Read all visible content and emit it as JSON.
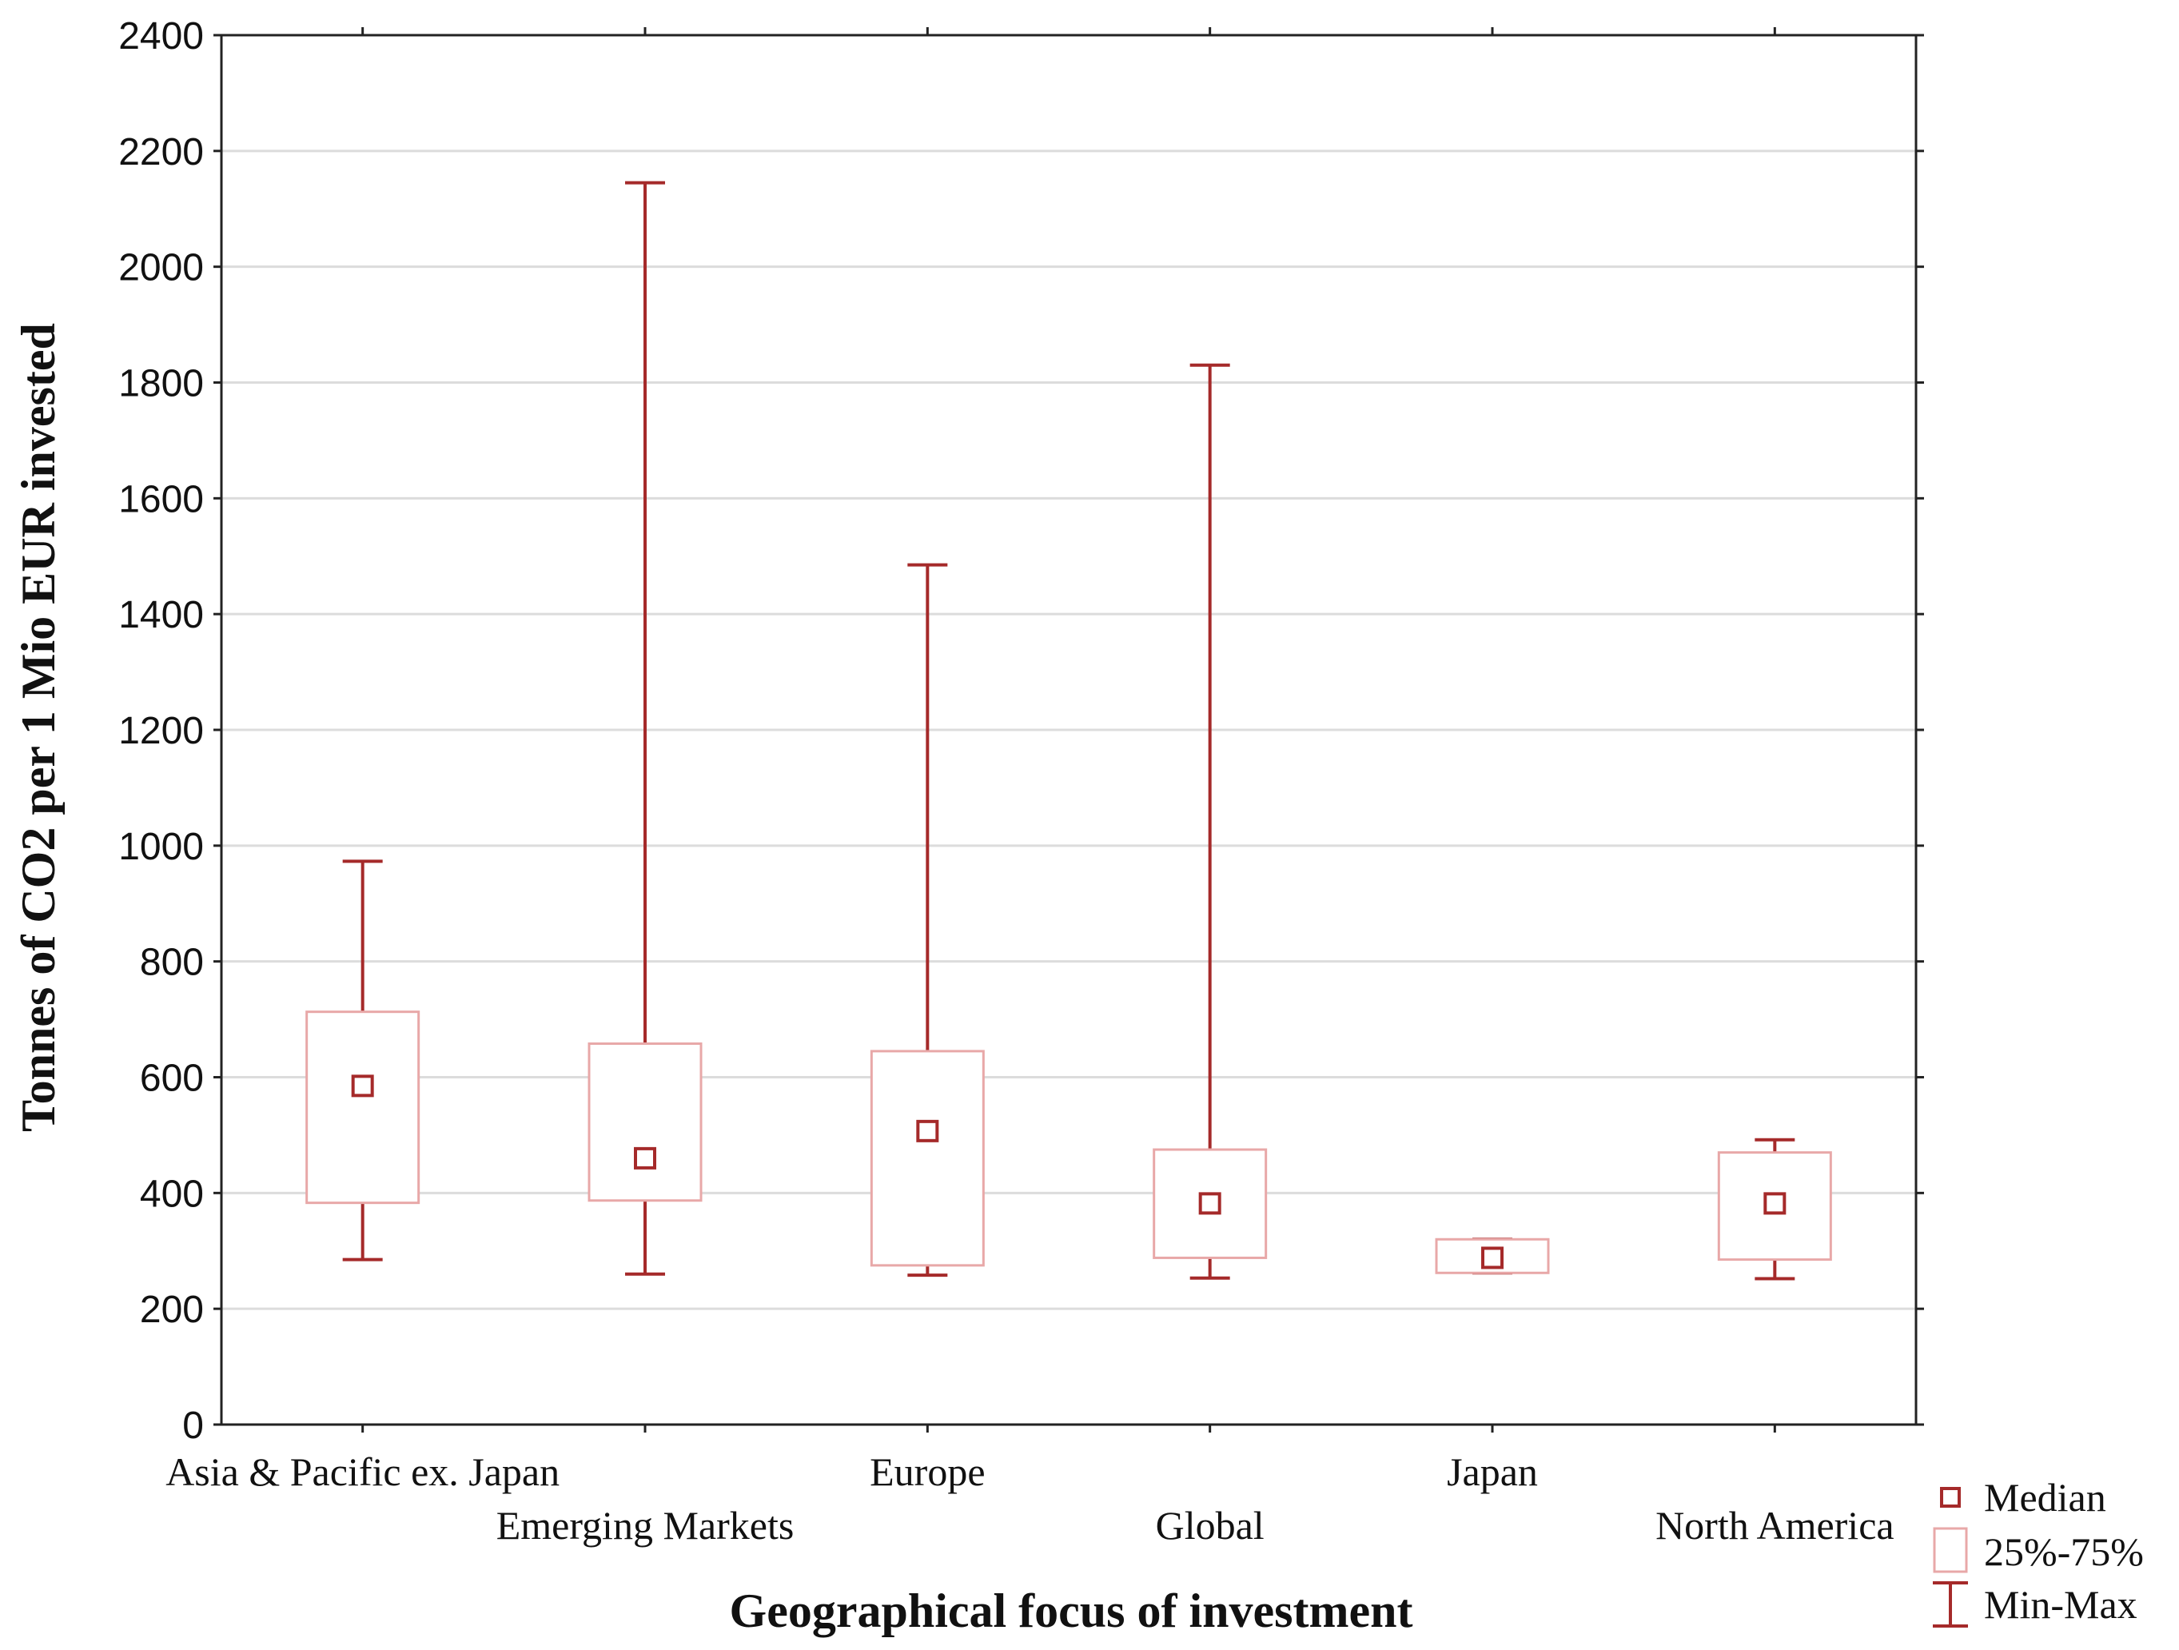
{
  "chart_data": {
    "type": "box",
    "xlabel": "Geographical focus of investment",
    "ylabel": "Tonnes of CO2 per 1 Mio EUR invested",
    "ylim": [
      0,
      2400
    ],
    "yticks": [
      0,
      200,
      400,
      600,
      800,
      1000,
      1200,
      1400,
      1600,
      1800,
      2000,
      2200,
      2400
    ],
    "grid": true,
    "legend_position": "bottom-right",
    "categories": [
      "Asia & Pacific ex. Japan",
      "Emerging Markets",
      "Europe",
      "Global",
      "Japan",
      "North America"
    ],
    "boxes": [
      {
        "min": 285,
        "q1": 383,
        "median": 585,
        "q3": 713,
        "max": 973
      },
      {
        "min": 260,
        "q1": 387,
        "median": 460,
        "q3": 658,
        "max": 2145
      },
      {
        "min": 258,
        "q1": 275,
        "median": 507,
        "q3": 645,
        "max": 1485
      },
      {
        "min": 253,
        "q1": 288,
        "median": 382,
        "q3": 475,
        "max": 1830
      },
      {
        "min": 262,
        "q1": 262,
        "median": 288,
        "q3": 320,
        "max": 320
      },
      {
        "min": 252,
        "q1": 285,
        "median": 382,
        "q3": 470,
        "max": 492
      }
    ],
    "legend": [
      "Median",
      "25%-75%",
      "Min-Max"
    ],
    "colors": {
      "whisker": "#a52a2a",
      "box": "#e8a8a8",
      "grid": "#dcdcdc",
      "axis": "#222222"
    }
  }
}
